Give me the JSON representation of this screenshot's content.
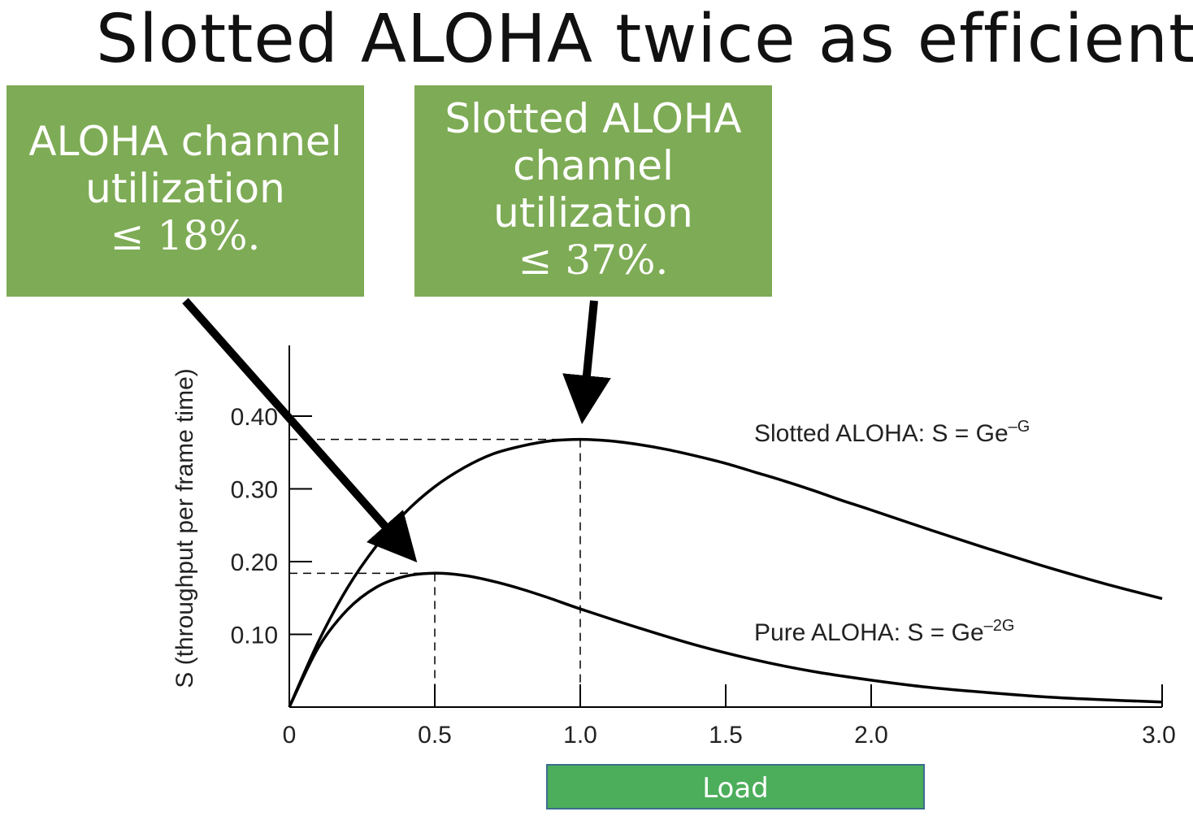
{
  "slide": {
    "title": "Slotted ALOHA twice as efficient"
  },
  "callouts": {
    "pure": {
      "line1": "ALOHA channel",
      "line2": "utilization",
      "math": "≤ 18%."
    },
    "slotted": {
      "line1": "Slotted ALOHA",
      "line2": "channel",
      "line3": "utilization",
      "math": "≤ 37%."
    }
  },
  "load_label": "Load",
  "colors": {
    "callout": "#7eab55",
    "load_box": "#4cae5b",
    "load_border": "#3a6d8e"
  },
  "chart_data": {
    "type": "line",
    "ylabel": "S (throughput per frame time)",
    "xlim": [
      0,
      3.0
    ],
    "ylim": [
      0,
      0.45
    ],
    "x_ticks": [
      0,
      0.5,
      1.0,
      1.5,
      2.0,
      3.0
    ],
    "x_tick_labels": [
      "0",
      "0.5",
      "1.0",
      "1.5",
      "2.0",
      "3.0"
    ],
    "y_ticks": [
      0.1,
      0.2,
      0.3,
      0.4
    ],
    "y_tick_labels": [
      "0.10",
      "0.20",
      "0.30",
      "0.40"
    ],
    "grid": false,
    "series": [
      {
        "key": "slotted",
        "label": "Slotted ALOHA: S = Ge",
        "label_sup": "–G",
        "x": [
          0,
          0.1,
          0.2,
          0.3,
          0.4,
          0.5,
          0.6,
          0.7,
          0.8,
          0.9,
          1.0,
          1.1,
          1.2,
          1.3,
          1.4,
          1.5,
          1.6,
          1.7,
          1.8,
          1.9,
          2.0,
          2.2,
          2.4,
          2.6,
          2.8,
          3.0
        ],
        "values": [
          0,
          0.09,
          0.164,
          0.222,
          0.268,
          0.303,
          0.329,
          0.348,
          0.359,
          0.366,
          0.368,
          0.366,
          0.361,
          0.354,
          0.345,
          0.335,
          0.323,
          0.311,
          0.298,
          0.284,
          0.271,
          0.244,
          0.218,
          0.193,
          0.17,
          0.149
        ]
      },
      {
        "key": "pure",
        "label": "Pure ALOHA: S = Ge",
        "label_sup": "–2G",
        "x": [
          0,
          0.1,
          0.2,
          0.3,
          0.4,
          0.5,
          0.6,
          0.7,
          0.8,
          0.9,
          1.0,
          1.2,
          1.4,
          1.6,
          1.8,
          2.0,
          2.2,
          2.4,
          2.6,
          2.8,
          3.0
        ],
        "values": [
          0,
          0.082,
          0.134,
          0.165,
          0.18,
          0.184,
          0.181,
          0.173,
          0.162,
          0.149,
          0.135,
          0.109,
          0.085,
          0.065,
          0.049,
          0.037,
          0.027,
          0.02,
          0.014,
          0.01,
          0.007
        ]
      }
    ],
    "annotations": [
      {
        "x": 0.5,
        "y": 0.184
      },
      {
        "x": 1.0,
        "y": 0.368
      }
    ]
  }
}
